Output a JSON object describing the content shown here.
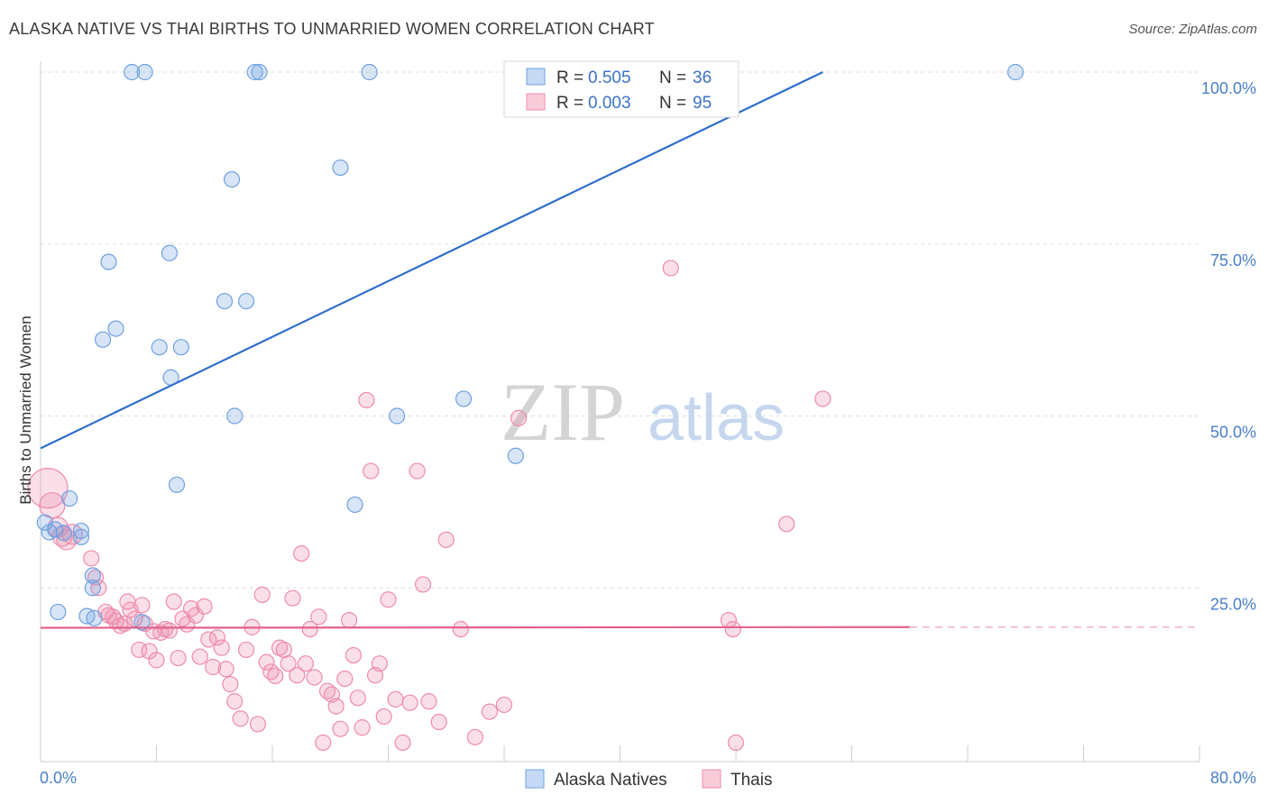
{
  "title": "ALASKA NATIVE VS THAI BIRTHS TO UNMARRIED WOMEN CORRELATION CHART",
  "source": "Source: ZipAtlas.com",
  "watermark": {
    "zip": "ZIP",
    "atlas": "atlas"
  },
  "colors": {
    "blue": "#6fa1e2",
    "blue_line": "#2f6fca",
    "pink": "#ee8cab",
    "pink_line": "#e2618d",
    "tick": "#4a7fc8"
  },
  "legend": {
    "r_label": "R = ",
    "n_label": "N = ",
    "rows": [
      {
        "r": "0.505",
        "n": "36"
      },
      {
        "r": "0.003",
        "n": "95"
      }
    ]
  },
  "chart_data": {
    "type": "scatter",
    "title": "ALASKA NATIVE VS THAI BIRTHS TO UNMARRIED WOMEN CORRELATION CHART",
    "xlabel": "",
    "ylabel": "Births to Unmarried Women",
    "xlim": [
      0,
      80
    ],
    "ylim": [
      0,
      100
    ],
    "x_tick_labels": [
      "0.0%",
      "80.0%"
    ],
    "y_ticks": [
      25,
      50,
      75,
      100
    ],
    "y_tick_labels": [
      "25.0%",
      "50.0%",
      "75.0%",
      "100.0%"
    ],
    "grid": true,
    "legend_position": "top-center",
    "series": [
      {
        "name": "Alaska Natives",
        "color": "#6fa1e2",
        "r": 0.505,
        "n": 36,
        "trend": {
          "x": [
            0,
            54
          ],
          "y": [
            45.3,
            100
          ]
        },
        "points": [
          [
            6.3,
            100
          ],
          [
            7.2,
            100
          ],
          [
            14.8,
            100
          ],
          [
            15.1,
            100
          ],
          [
            22.7,
            100
          ],
          [
            67.3,
            100
          ],
          [
            20.7,
            86.1
          ],
          [
            13.2,
            84.4
          ],
          [
            8.9,
            73.7
          ],
          [
            4.7,
            72.4
          ],
          [
            12.7,
            66.7
          ],
          [
            14.2,
            66.7
          ],
          [
            5.2,
            62.7
          ],
          [
            4.3,
            61.1
          ],
          [
            8.2,
            60.0
          ],
          [
            9.7,
            60.0
          ],
          [
            9.0,
            55.6
          ],
          [
            13.4,
            50.0
          ],
          [
            24.6,
            50.0
          ],
          [
            29.2,
            52.5
          ],
          [
            32.8,
            44.2
          ],
          [
            9.4,
            40.0
          ],
          [
            2.0,
            38.0
          ],
          [
            21.7,
            37.1
          ],
          [
            0.3,
            34.5
          ],
          [
            1.0,
            33.5
          ],
          [
            0.6,
            33.1
          ],
          [
            1.6,
            33.0
          ],
          [
            2.8,
            33.3
          ],
          [
            2.8,
            32.4
          ],
          [
            3.6,
            26.8
          ],
          [
            3.6,
            25.0
          ],
          [
            1.2,
            21.5
          ],
          [
            3.2,
            20.9
          ],
          [
            3.7,
            20.6
          ],
          [
            7.0,
            20.0
          ]
        ]
      },
      {
        "name": "Thais",
        "color": "#ee8cab",
        "r": 0.003,
        "n": 95,
        "trend": {
          "x": [
            0,
            60
          ],
          "y": [
            19.2,
            19.3
          ]
        },
        "trend_dashed": {
          "x": [
            60,
            80
          ],
          "y": [
            19.3,
            19.3
          ]
        },
        "points": [
          [
            0.5,
            39.5
          ],
          [
            0.8,
            37.0
          ],
          [
            1.2,
            33.8
          ],
          [
            1.5,
            32.5
          ],
          [
            1.8,
            32.0
          ],
          [
            2.2,
            32.8
          ],
          [
            3.5,
            29.3
          ],
          [
            3.8,
            26.5
          ],
          [
            4.0,
            25.0
          ],
          [
            4.5,
            21.5
          ],
          [
            4.7,
            21.0
          ],
          [
            5.0,
            20.8
          ],
          [
            5.2,
            20.2
          ],
          [
            5.5,
            19.5
          ],
          [
            5.8,
            19.8
          ],
          [
            6.0,
            23.0
          ],
          [
            6.2,
            21.8
          ],
          [
            6.5,
            20.5
          ],
          [
            6.8,
            16.0
          ],
          [
            7.0,
            22.5
          ],
          [
            7.2,
            19.8
          ],
          [
            7.5,
            15.8
          ],
          [
            7.8,
            18.7
          ],
          [
            8.0,
            14.5
          ],
          [
            8.3,
            18.5
          ],
          [
            8.6,
            19.0
          ],
          [
            8.9,
            18.8
          ],
          [
            9.2,
            23.0
          ],
          [
            9.5,
            14.8
          ],
          [
            9.8,
            20.5
          ],
          [
            10.1,
            19.7
          ],
          [
            10.4,
            22.0
          ],
          [
            10.7,
            21.0
          ],
          [
            11.0,
            15.0
          ],
          [
            11.3,
            22.3
          ],
          [
            11.6,
            17.5
          ],
          [
            11.9,
            13.5
          ],
          [
            12.2,
            17.8
          ],
          [
            12.5,
            16.3
          ],
          [
            12.8,
            13.2
          ],
          [
            13.1,
            11.0
          ],
          [
            13.4,
            8.5
          ],
          [
            13.8,
            6.0
          ],
          [
            14.2,
            16.0
          ],
          [
            14.6,
            19.3
          ],
          [
            15.0,
            5.2
          ],
          [
            15.3,
            24.0
          ],
          [
            15.6,
            14.2
          ],
          [
            15.9,
            12.8
          ],
          [
            16.2,
            12.2
          ],
          [
            16.5,
            16.3
          ],
          [
            16.8,
            16.0
          ],
          [
            17.1,
            14.0
          ],
          [
            17.4,
            23.5
          ],
          [
            17.7,
            12.3
          ],
          [
            18.0,
            30.0
          ],
          [
            18.3,
            14.0
          ],
          [
            18.6,
            19.0
          ],
          [
            18.9,
            12.0
          ],
          [
            19.2,
            20.8
          ],
          [
            19.5,
            2.5
          ],
          [
            19.8,
            10.0
          ],
          [
            20.1,
            9.5
          ],
          [
            20.4,
            7.8
          ],
          [
            20.7,
            4.5
          ],
          [
            21.0,
            11.8
          ],
          [
            21.3,
            20.3
          ],
          [
            21.6,
            15.2
          ],
          [
            21.9,
            9.0
          ],
          [
            22.2,
            4.7
          ],
          [
            22.5,
            52.3
          ],
          [
            22.8,
            42.0
          ],
          [
            23.1,
            12.3
          ],
          [
            23.4,
            14.0
          ],
          [
            23.7,
            6.3
          ],
          [
            24.0,
            23.3
          ],
          [
            24.5,
            8.8
          ],
          [
            25.0,
            2.5
          ],
          [
            25.5,
            8.3
          ],
          [
            26.0,
            42.0
          ],
          [
            26.4,
            25.5
          ],
          [
            26.8,
            8.5
          ],
          [
            27.5,
            5.5
          ],
          [
            28.0,
            32.0
          ],
          [
            29.0,
            19.0
          ],
          [
            30.0,
            3.3
          ],
          [
            31.0,
            7.0
          ],
          [
            32.0,
            8.0
          ],
          [
            33.0,
            49.7
          ],
          [
            43.5,
            71.5
          ],
          [
            47.5,
            20.3
          ],
          [
            47.8,
            19.0
          ],
          [
            48.0,
            2.5
          ],
          [
            51.5,
            34.3
          ],
          [
            54.0,
            52.5
          ]
        ]
      }
    ]
  }
}
